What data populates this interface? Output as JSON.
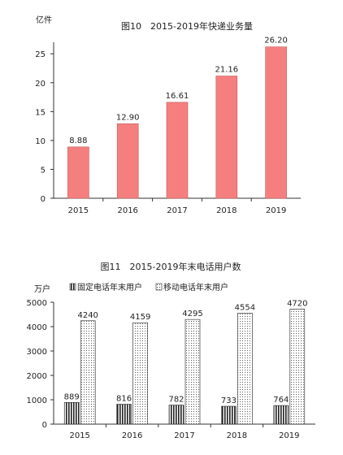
{
  "chart_data": [
    {
      "type": "bar",
      "title": "图10　2015-2019年快递业务量",
      "ylabel": "亿件",
      "categories": [
        "2015",
        "2016",
        "2017",
        "2018",
        "2019"
      ],
      "values": [
        8.88,
        12.9,
        16.61,
        21.16,
        26.2
      ],
      "value_labels": [
        "8.88",
        "12.90",
        "16.61",
        "21.16",
        "26.20"
      ],
      "ylim": [
        0,
        27
      ],
      "yticks": [
        0,
        5,
        10,
        15,
        20,
        25
      ],
      "bar_color": "#f57f7f",
      "grid": false,
      "legend": "none"
    },
    {
      "type": "bar",
      "title": "图11　2015-2019年末电话用户数",
      "ylabel": "万户",
      "categories": [
        "2015",
        "2016",
        "2017",
        "2018",
        "2019"
      ],
      "series": [
        {
          "name": "固定电话年末用户",
          "values": [
            889,
            816,
            782,
            733,
            764
          ],
          "pattern": "vertical-stripes"
        },
        {
          "name": "移动电话年末用户",
          "values": [
            4240,
            4159,
            4295,
            4554,
            4720
          ],
          "pattern": "dots"
        }
      ],
      "ylim": [
        0,
        5000
      ],
      "yticks": [
        0,
        1000,
        2000,
        3000,
        4000,
        5000
      ],
      "grid": false,
      "legend": "top"
    }
  ]
}
